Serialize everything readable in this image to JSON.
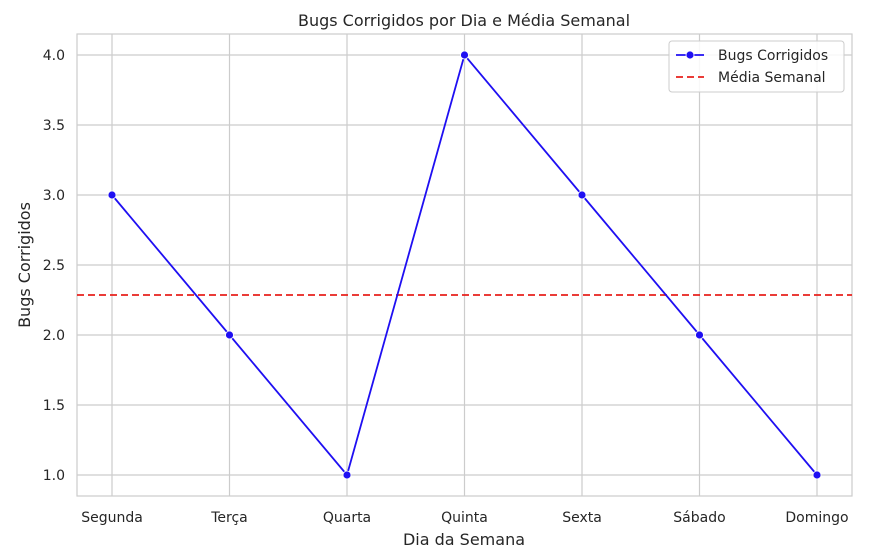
{
  "chart_data": {
    "type": "line",
    "title": "Bugs Corrigidos por Dia e Média Semanal",
    "xlabel": "Dia da Semana",
    "ylabel": "Bugs Corrigidos",
    "categories": [
      "Segunda",
      "Terça",
      "Quarta",
      "Quinta",
      "Sexta",
      "Sábado",
      "Domingo"
    ],
    "series": [
      {
        "name": "Bugs Corrigidos",
        "values": [
          3,
          2,
          1,
          4,
          3,
          2,
          1
        ],
        "color": "#1f0ff2",
        "style": "solid",
        "marker": "circle"
      }
    ],
    "reference_lines": [
      {
        "name": "Média Semanal",
        "value": 2.2857,
        "color": "#e8211c",
        "style": "dashed"
      }
    ],
    "ylim": [
      0.85,
      4.15
    ],
    "yticks": [
      "1.0",
      "1.5",
      "2.0",
      "2.5",
      "3.0",
      "3.5",
      "4.0"
    ],
    "grid": true,
    "legend_position": "top-right"
  }
}
